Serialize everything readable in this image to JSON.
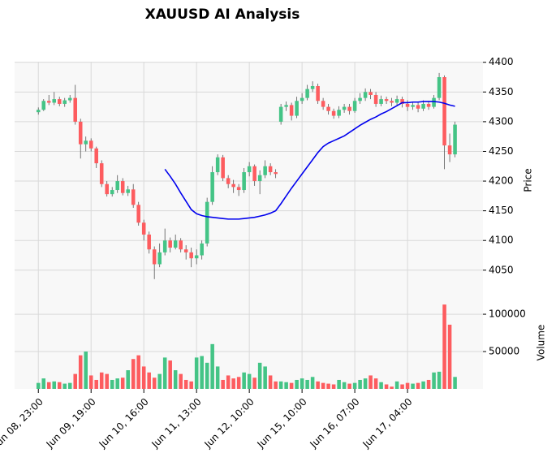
{
  "chart_data": {
    "type": "candlestick",
    "title": "XAUUSD AI Analysis",
    "ylabel": "Price",
    "ylim": [
      4006,
      4401
    ],
    "yticks": [
      4050,
      4100,
      4150,
      4200,
      4250,
      4300,
      4350,
      4400
    ],
    "xlim": [
      -4.5,
      84.3
    ],
    "xticks": [
      {
        "value": 0,
        "label": "Jun 08, 23:00"
      },
      {
        "value": 10,
        "label": "Jun 09, 19:00"
      },
      {
        "value": 20,
        "label": "Jun 10, 16:00"
      },
      {
        "value": 30,
        "label": "Jun 11, 13:00"
      },
      {
        "value": 40,
        "label": "Jun 12, 10:00"
      },
      {
        "value": 50,
        "label": "Jun 15, 10:00"
      },
      {
        "value": 60,
        "label": "Jun 16, 07:00"
      },
      {
        "value": 70,
        "label": "Jun 17, 04:00"
      }
    ],
    "grid": true,
    "up_color": "#44c486",
    "down_color": "#fd5c5f",
    "open": [
      4316,
      4320,
      4335,
      4332,
      4338,
      4330,
      4336,
      4340,
      4300,
      4262,
      4268,
      4255,
      4230,
      4195,
      4178,
      4185,
      4200,
      4180,
      4186,
      4160,
      4130,
      4110,
      4085,
      4060,
      4080,
      4100,
      4088,
      4100,
      4085,
      4080,
      4070,
      4075,
      4095,
      4165,
      4215,
      4240,
      4205,
      4195,
      4190,
      4185,
      4215,
      4225,
      4200,
      4210,
      4225,
      4215,
      4300,
      4325,
      4328,
      4310,
      4335,
      4340,
      4355,
      4360,
      4335,
      4325,
      4318,
      4310,
      4320,
      4325,
      4318,
      4335,
      4340,
      4350,
      4345,
      4330,
      4338,
      4335,
      4332,
      4338,
      4330,
      4325,
      4328,
      4322,
      4330,
      4325,
      4340,
      4375,
      4260,
      4245
    ],
    "high": [
      4324,
      4338,
      4345,
      4350,
      4342,
      4340,
      4345,
      4362,
      4305,
      4275,
      4272,
      4258,
      4235,
      4200,
      4190,
      4210,
      4205,
      4192,
      4195,
      4165,
      4135,
      4115,
      4090,
      4095,
      4120,
      4105,
      4110,
      4104,
      4092,
      4088,
      4085,
      4100,
      4172,
      4225,
      4245,
      4244,
      4210,
      4202,
      4195,
      4222,
      4232,
      4228,
      4218,
      4235,
      4230,
      4220,
      4330,
      4334,
      4332,
      4342,
      4348,
      4362,
      4368,
      4364,
      4340,
      4330,
      4322,
      4326,
      4330,
      4330,
      4340,
      4348,
      4356,
      4355,
      4350,
      4344,
      4342,
      4340,
      4344,
      4342,
      4336,
      4334,
      4332,
      4336,
      4335,
      4345,
      4382,
      4378,
      4280,
      4300
    ],
    "low": [
      4312,
      4318,
      4328,
      4328,
      4326,
      4325,
      4332,
      4295,
      4238,
      4250,
      4250,
      4222,
      4190,
      4174,
      4174,
      4180,
      4176,
      4175,
      4155,
      4125,
      4100,
      4078,
      4035,
      4055,
      4075,
      4080,
      4085,
      4080,
      4068,
      4055,
      4060,
      4068,
      4090,
      4160,
      4210,
      4200,
      4188,
      4180,
      4175,
      4180,
      4208,
      4192,
      4178,
      4205,
      4210,
      4205,
      4295,
      4318,
      4302,
      4306,
      4330,
      4336,
      4350,
      4330,
      4320,
      4312,
      4305,
      4306,
      4315,
      4312,
      4315,
      4330,
      4335,
      4338,
      4325,
      4326,
      4330,
      4326,
      4328,
      4324,
      4318,
      4320,
      4316,
      4318,
      4320,
      4322,
      4336,
      4220,
      4232,
      4240
    ],
    "close": [
      4320,
      4335,
      4332,
      4338,
      4330,
      4336,
      4340,
      4300,
      4262,
      4268,
      4255,
      4230,
      4195,
      4178,
      4185,
      4200,
      4180,
      4186,
      4160,
      4130,
      4110,
      4085,
      4060,
      4080,
      4100,
      4088,
      4100,
      4085,
      4080,
      4070,
      4075,
      4095,
      4165,
      4215,
      4240,
      4205,
      4195,
      4190,
      4185,
      4215,
      4225,
      4200,
      4210,
      4225,
      4215,
      4212,
      4325,
      4328,
      4310,
      4335,
      4340,
      4355,
      4360,
      4335,
      4325,
      4318,
      4310,
      4320,
      4325,
      4318,
      4335,
      4340,
      4350,
      4345,
      4330,
      4338,
      4335,
      4332,
      4338,
      4330,
      4325,
      4328,
      4322,
      4330,
      4325,
      4340,
      4375,
      4260,
      4245,
      4295
    ],
    "ma": {
      "color": "#0000ee",
      "values": [
        null,
        null,
        null,
        null,
        null,
        null,
        null,
        null,
        null,
        null,
        null,
        null,
        null,
        null,
        null,
        null,
        null,
        null,
        null,
        null,
        null,
        null,
        null,
        null,
        4220,
        4208,
        4195,
        4180,
        4166,
        4152,
        4145,
        4142,
        4140,
        4139,
        4138,
        4137,
        4136,
        4136,
        4136,
        4137,
        4138,
        4139,
        4141,
        4143,
        4146,
        4150,
        4162,
        4175,
        4188,
        4200,
        4212,
        4224,
        4236,
        4248,
        4258,
        4264,
        4268,
        4272,
        4276,
        4282,
        4288,
        4294,
        4299,
        4304,
        4308,
        4313,
        4317,
        4322,
        4327,
        4332,
        4332,
        4333,
        4333,
        4334,
        4334,
        4334,
        4333,
        4331,
        4328,
        4326
      ]
    },
    "volume": {
      "ylabel": "Volume",
      "ylim": [
        0,
        124000
      ],
      "yticks": [
        50000,
        100000
      ],
      "values": [
        8000,
        14000,
        9000,
        10000,
        9000,
        7000,
        8000,
        20000,
        45000,
        50000,
        18000,
        12000,
        22000,
        20000,
        12000,
        14000,
        15000,
        25000,
        40000,
        45000,
        30000,
        22000,
        15000,
        20000,
        42000,
        38000,
        25000,
        20000,
        12000,
        10000,
        42000,
        44000,
        35000,
        60000,
        30000,
        12000,
        18000,
        14000,
        16000,
        22000,
        20000,
        15000,
        35000,
        30000,
        18000,
        10000,
        10000,
        9000,
        8000,
        12000,
        14000,
        12000,
        16000,
        10000,
        8000,
        7000,
        6000,
        12000,
        9000,
        7000,
        8000,
        12000,
        14000,
        18000,
        14000,
        9000,
        6000,
        3000,
        10000,
        6000,
        8000,
        7000,
        8000,
        10000,
        12000,
        22000,
        23000,
        113000,
        86000,
        16000
      ]
    }
  }
}
